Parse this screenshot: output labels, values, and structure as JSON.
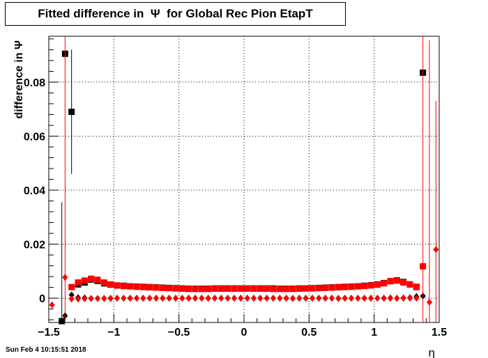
{
  "title": "Fitted difference in  Ψ  for Global Rec Pion EtapT",
  "footer_date": "Sun Feb  4 10:15:51 2018",
  "chart_data": {
    "type": "scatter",
    "xlabel": "η",
    "ylabel": "difference in  Ψ",
    "xlim": [
      -1.5,
      1.5
    ],
    "ylim": [
      -0.009,
      0.097
    ],
    "xticks": [
      -1.5,
      -1,
      -0.5,
      0,
      0.5,
      1,
      1.5
    ],
    "xtick_labels": [
      "−1.5",
      "−1",
      "−0.5",
      "0",
      "0.5",
      "1",
      "1.5"
    ],
    "yticks": [
      0,
      0.02,
      0.04,
      0.06,
      0.08
    ],
    "ytick_labels": [
      "0",
      "0.02",
      "0.04",
      "0.06",
      "0.08"
    ],
    "grid": true,
    "colors": {
      "black": "#000000",
      "red": "#ff0000"
    },
    "series": [
      {
        "marker": "square",
        "color": "#000000",
        "points": [
          [
            -1.4,
            -0.0085,
            0.044
          ],
          [
            -1.375,
            0.0905,
            0
          ],
          [
            -1.325,
            0.069,
            0.023
          ],
          [
            -1.275,
            0.0051,
            0
          ],
          [
            -1.225,
            0.0058,
            0
          ],
          [
            -1.175,
            0.0069,
            0
          ],
          [
            -1.125,
            0.0064,
            0
          ],
          [
            -1.075,
            0.0055,
            0
          ],
          [
            -1.025,
            0.005,
            0
          ],
          [
            -0.975,
            0.0047,
            0
          ],
          [
            -0.925,
            0.0046,
            0
          ],
          [
            -0.875,
            0.0044,
            0
          ],
          [
            -0.825,
            0.0043,
            0
          ],
          [
            -0.775,
            0.0042,
            0
          ],
          [
            -0.725,
            0.0041,
            0
          ],
          [
            -0.675,
            0.004,
            0
          ],
          [
            -0.625,
            0.0039,
            0
          ],
          [
            -0.575,
            0.0038,
            0
          ],
          [
            -0.525,
            0.0037,
            0
          ],
          [
            -0.475,
            0.0036,
            0
          ],
          [
            -0.425,
            0.0035,
            0
          ],
          [
            -0.375,
            0.0035,
            0
          ],
          [
            -0.325,
            0.0035,
            0
          ],
          [
            -0.275,
            0.0035,
            0
          ],
          [
            -0.225,
            0.0036,
            0
          ],
          [
            -0.175,
            0.0036,
            0
          ],
          [
            -0.125,
            0.0036,
            0
          ],
          [
            -0.075,
            0.0036,
            0
          ],
          [
            -0.025,
            0.0036,
            0
          ],
          [
            0.025,
            0.0036,
            0
          ],
          [
            0.075,
            0.0036,
            0
          ],
          [
            0.125,
            0.0036,
            0
          ],
          [
            0.175,
            0.0036,
            0
          ],
          [
            0.225,
            0.0036,
            0
          ],
          [
            0.275,
            0.0035,
            0
          ],
          [
            0.325,
            0.0035,
            0
          ],
          [
            0.375,
            0.0035,
            0
          ],
          [
            0.425,
            0.0036,
            0
          ],
          [
            0.475,
            0.0036,
            0
          ],
          [
            0.525,
            0.0037,
            0
          ],
          [
            0.575,
            0.0038,
            0
          ],
          [
            0.625,
            0.0039,
            0
          ],
          [
            0.675,
            0.004,
            0
          ],
          [
            0.725,
            0.0041,
            0
          ],
          [
            0.775,
            0.0042,
            0
          ],
          [
            0.825,
            0.0043,
            0
          ],
          [
            0.875,
            0.0044,
            0
          ],
          [
            0.925,
            0.0046,
            0
          ],
          [
            0.975,
            0.0048,
            0
          ],
          [
            1.025,
            0.0051,
            0
          ],
          [
            1.075,
            0.0056,
            0
          ],
          [
            1.125,
            0.0063,
            0
          ],
          [
            1.175,
            0.0066,
            0
          ],
          [
            1.225,
            0.006,
            0
          ],
          [
            1.275,
            0.0051,
            0
          ],
          [
            1.325,
            0.0042,
            0
          ],
          [
            1.375,
            0.0835,
            0
          ]
        ]
      },
      {
        "marker": "diamond",
        "color": "#000000",
        "points": [
          [
            -1.375,
            -0.0065,
            0
          ],
          [
            -1.325,
            0.0012,
            0
          ],
          [
            -1.275,
            0.0002,
            0
          ],
          [
            -1.225,
            0.0001,
            0
          ],
          [
            -1.175,
            -0.0001,
            0
          ],
          [
            -1.125,
            -0.0001,
            0
          ],
          [
            -1.075,
            -0.0001,
            0
          ],
          [
            -1.025,
            -0.0001,
            0
          ],
          [
            -0.975,
            0.0,
            0
          ],
          [
            -0.925,
            0.0,
            0
          ],
          [
            -0.875,
            0.0,
            0
          ],
          [
            -0.825,
            0.0,
            0
          ],
          [
            -0.775,
            0.0,
            0
          ],
          [
            -0.725,
            0.0,
            0
          ],
          [
            -0.675,
            0.0,
            0
          ],
          [
            -0.625,
            0.0,
            0
          ],
          [
            -0.575,
            0.0,
            0
          ],
          [
            -0.525,
            0.0,
            0
          ],
          [
            -0.475,
            0.0,
            0
          ],
          [
            -0.425,
            0.0,
            0
          ],
          [
            -0.375,
            0.0,
            0
          ],
          [
            -0.325,
            0.0,
            0
          ],
          [
            -0.275,
            0.0,
            0
          ],
          [
            -0.225,
            0.0,
            0
          ],
          [
            -0.175,
            0.0,
            0
          ],
          [
            -0.125,
            0.0,
            0
          ],
          [
            -0.075,
            0.0,
            0
          ],
          [
            -0.025,
            0.0,
            0
          ],
          [
            0.025,
            0.0,
            0
          ],
          [
            0.075,
            0.0,
            0
          ],
          [
            0.125,
            0.0,
            0
          ],
          [
            0.175,
            0.0,
            0
          ],
          [
            0.225,
            0.0,
            0
          ],
          [
            0.275,
            0.0,
            0
          ],
          [
            0.325,
            0.0,
            0
          ],
          [
            0.375,
            -0.0001,
            0
          ],
          [
            0.425,
            0.0,
            0
          ],
          [
            0.475,
            0.0,
            0
          ],
          [
            0.525,
            0.0,
            0
          ],
          [
            0.575,
            0.0,
            0
          ],
          [
            0.625,
            0.0,
            0
          ],
          [
            0.675,
            0.0,
            0
          ],
          [
            0.725,
            -0.0001,
            0
          ],
          [
            0.775,
            0.0,
            0
          ],
          [
            0.825,
            0.0,
            0
          ],
          [
            0.875,
            0.0,
            0
          ],
          [
            0.925,
            0.0,
            0
          ],
          [
            0.975,
            0.0,
            0
          ],
          [
            1.025,
            0.0,
            0
          ],
          [
            1.075,
            0.0,
            0
          ],
          [
            1.125,
            0.0001,
            0
          ],
          [
            1.175,
            0.0,
            0
          ],
          [
            1.225,
            0.0001,
            0
          ],
          [
            1.275,
            0.0002,
            0
          ],
          [
            1.325,
            0.0006,
            0
          ],
          [
            1.375,
            0.0008,
            0
          ]
        ]
      },
      {
        "marker": "square",
        "color": "#ff0000",
        "points": [
          [
            -1.325,
            0.0041,
            0
          ],
          [
            -1.275,
            0.0058,
            0
          ],
          [
            -1.225,
            0.0065,
            0
          ],
          [
            -1.175,
            0.0072,
            0
          ],
          [
            -1.125,
            0.0068,
            0
          ],
          [
            -1.075,
            0.0058,
            0
          ],
          [
            -1.025,
            0.0051,
            0
          ],
          [
            -0.975,
            0.0047,
            0
          ],
          [
            -0.925,
            0.0045,
            0
          ],
          [
            -0.875,
            0.0044,
            0
          ],
          [
            -0.825,
            0.0042,
            0
          ],
          [
            -0.775,
            0.0041,
            0
          ],
          [
            -0.725,
            0.004,
            0
          ],
          [
            -0.675,
            0.0039,
            0
          ],
          [
            -0.625,
            0.0038,
            0
          ],
          [
            -0.575,
            0.0037,
            0
          ],
          [
            -0.525,
            0.0036,
            0
          ],
          [
            -0.475,
            0.0035,
            0
          ],
          [
            -0.425,
            0.0034,
            0
          ],
          [
            -0.375,
            0.0034,
            0
          ],
          [
            -0.325,
            0.0034,
            0
          ],
          [
            -0.275,
            0.0034,
            0
          ],
          [
            -0.225,
            0.0035,
            0
          ],
          [
            -0.175,
            0.0035,
            0
          ],
          [
            -0.125,
            0.0035,
            0
          ],
          [
            -0.075,
            0.0035,
            0
          ],
          [
            -0.025,
            0.0035,
            0
          ],
          [
            0.025,
            0.0035,
            0
          ],
          [
            0.075,
            0.0035,
            0
          ],
          [
            0.125,
            0.0035,
            0
          ],
          [
            0.175,
            0.0035,
            0
          ],
          [
            0.225,
            0.0034,
            0
          ],
          [
            0.275,
            0.0034,
            0
          ],
          [
            0.325,
            0.0034,
            0
          ],
          [
            0.375,
            0.0034,
            0
          ],
          [
            0.425,
            0.0035,
            0
          ],
          [
            0.475,
            0.0036,
            0
          ],
          [
            0.525,
            0.0036,
            0
          ],
          [
            0.575,
            0.0037,
            0
          ],
          [
            0.625,
            0.0038,
            0
          ],
          [
            0.675,
            0.0039,
            0
          ],
          [
            0.725,
            0.004,
            0
          ],
          [
            0.775,
            0.0041,
            0
          ],
          [
            0.825,
            0.0042,
            0
          ],
          [
            0.875,
            0.0044,
            0
          ],
          [
            0.925,
            0.0045,
            0
          ],
          [
            0.975,
            0.0047,
            0
          ],
          [
            1.025,
            0.005,
            0
          ],
          [
            1.075,
            0.0055,
            0
          ],
          [
            1.125,
            0.0063,
            0
          ],
          [
            1.175,
            0.0065,
            0
          ],
          [
            1.225,
            0.0058,
            0
          ],
          [
            1.275,
            0.0051,
            0
          ],
          [
            1.325,
            0.0041,
            0
          ],
          [
            1.375,
            0.0118,
            0.095
          ]
        ]
      },
      {
        "marker": "diamond",
        "color": "#ff0000",
        "points": [
          [
            -1.475,
            -0.0025,
            0
          ],
          [
            -1.375,
            0.0077,
            0.097
          ],
          [
            -1.325,
            -0.0003,
            0
          ],
          [
            -1.275,
            -0.0003,
            0
          ],
          [
            -1.225,
            -0.0002,
            0
          ],
          [
            -1.175,
            -0.0001,
            0
          ],
          [
            -1.125,
            -0.0001,
            0
          ],
          [
            -1.075,
            -0.0001,
            0
          ],
          [
            -1.025,
            0.0,
            0
          ],
          [
            -0.975,
            0.0,
            0
          ],
          [
            -0.925,
            0.0,
            0
          ],
          [
            -0.875,
            0.0,
            0
          ],
          [
            -0.825,
            0.0,
            0
          ],
          [
            -0.775,
            0.0,
            0
          ],
          [
            -0.725,
            0.0,
            0
          ],
          [
            -0.675,
            0.0,
            0
          ],
          [
            -0.625,
            0.0,
            0
          ],
          [
            -0.575,
            0.0,
            0
          ],
          [
            -0.525,
            0.0,
            0
          ],
          [
            -0.475,
            0.0,
            0
          ],
          [
            -0.425,
            0.0,
            0
          ],
          [
            -0.375,
            0.0,
            0
          ],
          [
            -0.325,
            0.0,
            0
          ],
          [
            -0.275,
            0.0,
            0
          ],
          [
            -0.225,
            0.0,
            0
          ],
          [
            -0.175,
            0.0,
            0
          ],
          [
            -0.125,
            0.0,
            0
          ],
          [
            -0.075,
            0.0,
            0
          ],
          [
            -0.025,
            0.0,
            0
          ],
          [
            0.025,
            0.0,
            0
          ],
          [
            0.075,
            0.0,
            0
          ],
          [
            0.125,
            0.0,
            0
          ],
          [
            0.175,
            0.0,
            0
          ],
          [
            0.225,
            0.0,
            0
          ],
          [
            0.275,
            0.0,
            0
          ],
          [
            0.325,
            0.0,
            0
          ],
          [
            0.375,
            0.0,
            0
          ],
          [
            0.425,
            0.0,
            0
          ],
          [
            0.475,
            0.0,
            0
          ],
          [
            0.525,
            0.0,
            0
          ],
          [
            0.575,
            0.0,
            0
          ],
          [
            0.625,
            0.0,
            0
          ],
          [
            0.675,
            0.0,
            0
          ],
          [
            0.725,
            0.0,
            0
          ],
          [
            0.775,
            0.0,
            0
          ],
          [
            0.825,
            0.0,
            0
          ],
          [
            0.875,
            0.0,
            0
          ],
          [
            0.925,
            0.0,
            0
          ],
          [
            0.975,
            0.0,
            0
          ],
          [
            1.025,
            0.0,
            0
          ],
          [
            1.075,
            0.0,
            0
          ],
          [
            1.125,
            0.0,
            0
          ],
          [
            1.175,
            0.0,
            0
          ],
          [
            1.225,
            0.0,
            0
          ],
          [
            1.275,
            0.0,
            0
          ],
          [
            1.325,
            0.0,
            0
          ],
          [
            1.425,
            -0.0015,
            0.097
          ],
          [
            1.475,
            0.018,
            0.055
          ]
        ]
      }
    ]
  }
}
